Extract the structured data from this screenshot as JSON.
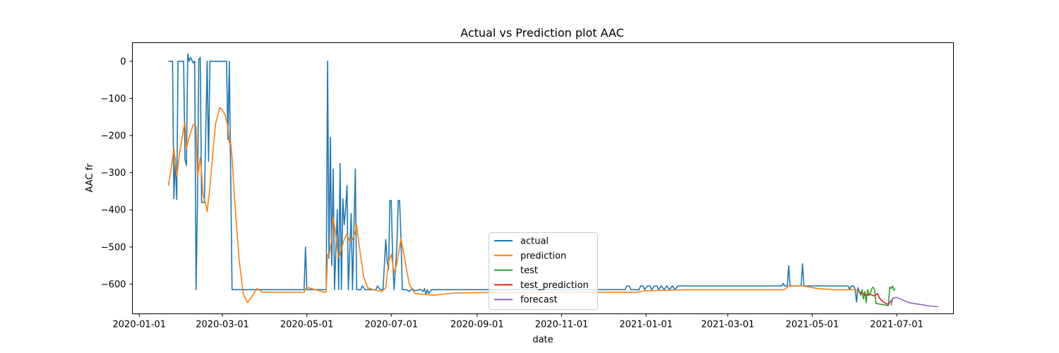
{
  "chart_data": {
    "type": "line",
    "title": "Actual vs Prediction plot AAC",
    "xlabel": "date",
    "ylabel": "AAC fr",
    "x_range": [
      "2019-12-27",
      "2021-08-11"
    ],
    "ylim": [
      -680,
      50
    ],
    "x_ticks": [
      "2020-01-01",
      "2020-03-01",
      "2020-05-01",
      "2020-07-01",
      "2020-09-01",
      "2020-11-01",
      "2021-01-01",
      "2021-03-01",
      "2021-05-01",
      "2021-07-01"
    ],
    "y_ticks": [
      0,
      -100,
      -200,
      -300,
      -400,
      -500,
      -600
    ],
    "legend_position": "lower center",
    "grid": false,
    "series": [
      {
        "name": "actual",
        "color": "#1f77b4",
        "points": [
          [
            "2020-01-22",
            0
          ],
          [
            "2020-01-25",
            0
          ],
          [
            "2020-01-26",
            -370
          ],
          [
            "2020-01-27",
            -260
          ],
          [
            "2020-01-28",
            -372
          ],
          [
            "2020-01-29",
            0
          ],
          [
            "2020-02-02",
            0
          ],
          [
            "2020-02-03",
            -265
          ],
          [
            "2020-02-04",
            -280
          ],
          [
            "2020-02-05",
            20
          ],
          [
            "2020-02-06",
            0
          ],
          [
            "2020-02-07",
            10
          ],
          [
            "2020-02-09",
            -5
          ],
          [
            "2020-02-10",
            0
          ],
          [
            "2020-02-11",
            -615
          ],
          [
            "2020-02-12",
            -380
          ],
          [
            "2020-02-13",
            5
          ],
          [
            "2020-02-14",
            10
          ],
          [
            "2020-02-15",
            -380
          ],
          [
            "2020-02-17",
            -380
          ],
          [
            "2020-02-19",
            0
          ],
          [
            "2020-02-20",
            -270
          ],
          [
            "2020-02-21",
            0
          ],
          [
            "2020-02-24",
            0
          ],
          [
            "2020-02-25",
            0
          ],
          [
            "2020-03-04",
            0
          ],
          [
            "2020-03-05",
            -210
          ],
          [
            "2020-03-06",
            0
          ],
          [
            "2020-03-08",
            -615
          ],
          [
            "2020-04-29",
            -615
          ],
          [
            "2020-04-30",
            -500
          ],
          [
            "2020-05-01",
            -615
          ],
          [
            "2020-05-15",
            -615
          ],
          [
            "2020-05-16",
            0
          ],
          [
            "2020-05-17",
            -530
          ],
          [
            "2020-05-18",
            -205
          ],
          [
            "2020-05-19",
            -550
          ],
          [
            "2020-05-20",
            -290
          ],
          [
            "2020-05-21",
            -615
          ],
          [
            "2020-05-23",
            -400
          ],
          [
            "2020-05-24",
            -615
          ],
          [
            "2020-05-25",
            -275
          ],
          [
            "2020-05-26",
            -615
          ],
          [
            "2020-05-27",
            -370
          ],
          [
            "2020-05-28",
            -440
          ],
          [
            "2020-05-29",
            -400
          ],
          [
            "2020-05-30",
            -335
          ],
          [
            "2020-05-31",
            -615
          ],
          [
            "2020-06-02",
            -410
          ],
          [
            "2020-06-03",
            -615
          ],
          [
            "2020-06-05",
            -290
          ],
          [
            "2020-06-06",
            -615
          ],
          [
            "2020-06-09",
            -615
          ],
          [
            "2020-06-10",
            -605
          ],
          [
            "2020-06-12",
            -615
          ],
          [
            "2020-06-20",
            -615
          ],
          [
            "2020-06-21",
            -605
          ],
          [
            "2020-06-23",
            -615
          ],
          [
            "2020-06-25",
            -615
          ],
          [
            "2020-06-27",
            -480
          ],
          [
            "2020-06-28",
            -540
          ],
          [
            "2020-06-29",
            -560
          ],
          [
            "2020-06-30",
            -375
          ],
          [
            "2020-07-01",
            -375
          ],
          [
            "2020-07-02",
            -535
          ],
          [
            "2020-07-03",
            -615
          ],
          [
            "2020-07-05",
            -500
          ],
          [
            "2020-07-06",
            -375
          ],
          [
            "2020-07-07",
            -375
          ],
          [
            "2020-07-08",
            -480
          ],
          [
            "2020-07-09",
            -615
          ],
          [
            "2020-07-12",
            -615
          ],
          [
            "2020-07-14",
            -620
          ],
          [
            "2020-07-16",
            -612
          ],
          [
            "2020-07-18",
            -618
          ],
          [
            "2020-07-22",
            -614
          ],
          [
            "2020-07-24",
            -620
          ],
          [
            "2020-07-25",
            -612
          ],
          [
            "2020-07-26",
            -628
          ],
          [
            "2020-07-27",
            -615
          ],
          [
            "2020-07-28",
            -625
          ],
          [
            "2020-07-30",
            -615
          ],
          [
            "2020-12-17",
            -615
          ],
          [
            "2020-12-18",
            -605
          ],
          [
            "2020-12-20",
            -605
          ],
          [
            "2020-12-21",
            -615
          ],
          [
            "2020-12-27",
            -615
          ],
          [
            "2020-12-28",
            -605
          ],
          [
            "2020-12-30",
            -605
          ],
          [
            "2020-12-31",
            -615
          ],
          [
            "2021-01-02",
            -605
          ],
          [
            "2021-01-04",
            -605
          ],
          [
            "2021-01-05",
            -615
          ],
          [
            "2021-01-07",
            -605
          ],
          [
            "2021-01-09",
            -605
          ],
          [
            "2021-01-10",
            -615
          ],
          [
            "2021-01-12",
            -605
          ],
          [
            "2021-01-14",
            -615
          ],
          [
            "2021-01-16",
            -605
          ],
          [
            "2021-01-18",
            -615
          ],
          [
            "2021-01-20",
            -605
          ],
          [
            "2021-01-22",
            -615
          ],
          [
            "2021-01-24",
            -605
          ],
          [
            "2021-04-09",
            -605
          ],
          [
            "2021-04-10",
            -598
          ],
          [
            "2021-04-11",
            -605
          ],
          [
            "2021-04-13",
            -605
          ],
          [
            "2021-04-14",
            -550
          ],
          [
            "2021-04-15",
            -605
          ],
          [
            "2021-04-23",
            -605
          ],
          [
            "2021-04-24",
            -545
          ],
          [
            "2021-04-25",
            -605
          ],
          [
            "2021-05-27",
            -605
          ],
          [
            "2021-05-28",
            -615
          ],
          [
            "2021-05-29",
            -605
          ],
          [
            "2021-05-31",
            -605
          ],
          [
            "2021-06-01",
            -615
          ],
          [
            "2021-06-02",
            -648
          ],
          [
            "2021-06-03",
            -610
          ],
          [
            "2021-06-04",
            -620
          ]
        ]
      },
      {
        "name": "prediction",
        "color": "#ff7f0e",
        "points": [
          [
            "2020-01-22",
            -335
          ],
          [
            "2020-01-24",
            -290
          ],
          [
            "2020-01-26",
            -235
          ],
          [
            "2020-01-28",
            -310
          ],
          [
            "2020-01-30",
            -250
          ],
          [
            "2020-02-02",
            -180
          ],
          [
            "2020-02-03",
            -165
          ],
          [
            "2020-02-04",
            -235
          ],
          [
            "2020-02-06",
            -205
          ],
          [
            "2020-02-09",
            -170
          ],
          [
            "2020-02-11",
            -175
          ],
          [
            "2020-02-12",
            -310
          ],
          [
            "2020-02-13",
            -290
          ],
          [
            "2020-02-14",
            -260
          ],
          [
            "2020-02-15",
            -300
          ],
          [
            "2020-02-16",
            -360
          ],
          [
            "2020-02-18",
            -385
          ],
          [
            "2020-02-19",
            -405
          ],
          [
            "2020-02-21",
            -340
          ],
          [
            "2020-02-23",
            -250
          ],
          [
            "2020-02-25",
            -170
          ],
          [
            "2020-02-28",
            -125
          ],
          [
            "2020-03-01",
            -130
          ],
          [
            "2020-03-03",
            -145
          ],
          [
            "2020-03-05",
            -175
          ],
          [
            "2020-03-06",
            -220
          ],
          [
            "2020-03-07",
            -218
          ],
          [
            "2020-03-08",
            -260
          ],
          [
            "2020-03-10",
            -380
          ],
          [
            "2020-03-13",
            -530
          ],
          [
            "2020-03-16",
            -625
          ],
          [
            "2020-03-19",
            -650
          ],
          [
            "2020-03-22",
            -635
          ],
          [
            "2020-03-26",
            -612
          ],
          [
            "2020-03-30",
            -622
          ],
          [
            "2020-04-29",
            -622
          ],
          [
            "2020-05-01",
            -608
          ],
          [
            "2020-05-04",
            -612
          ],
          [
            "2020-05-14",
            -622
          ],
          [
            "2020-05-15",
            -620
          ],
          [
            "2020-05-16",
            -520
          ],
          [
            "2020-05-17",
            -525
          ],
          [
            "2020-05-19",
            -480
          ],
          [
            "2020-05-20",
            -420
          ],
          [
            "2020-05-22",
            -470
          ],
          [
            "2020-05-24",
            -530
          ],
          [
            "2020-05-26",
            -505
          ],
          [
            "2020-05-28",
            -480
          ],
          [
            "2020-05-30",
            -465
          ],
          [
            "2020-06-01",
            -485
          ],
          [
            "2020-06-03",
            -480
          ],
          [
            "2020-06-05",
            -460
          ],
          [
            "2020-06-06",
            -440
          ],
          [
            "2020-06-08",
            -500
          ],
          [
            "2020-06-11",
            -580
          ],
          [
            "2020-06-14",
            -610
          ],
          [
            "2020-06-18",
            -615
          ],
          [
            "2020-06-24",
            -620
          ],
          [
            "2020-06-27",
            -610
          ],
          [
            "2020-06-29",
            -540
          ],
          [
            "2020-07-01",
            -520
          ],
          [
            "2020-07-03",
            -570
          ],
          [
            "2020-07-05",
            -545
          ],
          [
            "2020-07-08",
            -478
          ],
          [
            "2020-07-11",
            -540
          ],
          [
            "2020-07-14",
            -600
          ],
          [
            "2020-07-18",
            -625
          ],
          [
            "2020-07-25",
            -628
          ],
          [
            "2020-08-01",
            -630
          ],
          [
            "2020-08-15",
            -624
          ],
          [
            "2020-09-01",
            -623
          ],
          [
            "2020-12-25",
            -622
          ],
          [
            "2020-12-31",
            -618
          ],
          [
            "2021-01-31",
            -615
          ],
          [
            "2021-04-11",
            -615
          ],
          [
            "2021-04-14",
            -605
          ],
          [
            "2021-04-24",
            -605
          ],
          [
            "2021-05-05",
            -612
          ],
          [
            "2021-05-15",
            -615
          ],
          [
            "2021-06-01",
            -615
          ],
          [
            "2021-06-04",
            -622
          ]
        ]
      },
      {
        "name": "test",
        "color": "#2ca02c",
        "points": [
          [
            "2021-06-04",
            -620
          ],
          [
            "2021-06-05",
            -630
          ],
          [
            "2021-06-06",
            -615
          ],
          [
            "2021-06-07",
            -640
          ],
          [
            "2021-06-08",
            -620
          ],
          [
            "2021-06-09",
            -650
          ],
          [
            "2021-06-10",
            -615
          ],
          [
            "2021-06-11",
            -630
          ],
          [
            "2021-06-12",
            -625
          ],
          [
            "2021-06-13",
            -612
          ],
          [
            "2021-06-14",
            -608
          ],
          [
            "2021-06-15",
            -615
          ],
          [
            "2021-06-16",
            -652
          ],
          [
            "2021-06-25",
            -658
          ],
          [
            "2021-06-26",
            -608
          ],
          [
            "2021-06-27",
            -612
          ],
          [
            "2021-06-28",
            -605
          ],
          [
            "2021-06-29",
            -617
          ],
          [
            "2021-06-30",
            -612
          ]
        ]
      },
      {
        "name": "test_prediction",
        "color": "#d62728",
        "points": [
          [
            "2021-06-04",
            -622
          ],
          [
            "2021-06-06",
            -625
          ],
          [
            "2021-06-09",
            -630
          ],
          [
            "2021-06-12",
            -628
          ],
          [
            "2021-06-15",
            -632
          ],
          [
            "2021-06-17",
            -625
          ],
          [
            "2021-06-19",
            -640
          ],
          [
            "2021-06-22",
            -650
          ],
          [
            "2021-06-25",
            -655
          ],
          [
            "2021-06-28",
            -640
          ]
        ]
      },
      {
        "name": "forecast",
        "color": "#9467bd",
        "points": [
          [
            "2021-06-27",
            -658
          ],
          [
            "2021-06-28",
            -638
          ],
          [
            "2021-07-01",
            -636
          ],
          [
            "2021-07-05",
            -642
          ],
          [
            "2021-07-10",
            -650
          ],
          [
            "2021-07-15",
            -653
          ],
          [
            "2021-07-20",
            -656
          ],
          [
            "2021-07-25",
            -659
          ],
          [
            "2021-07-31",
            -661
          ]
        ]
      }
    ]
  }
}
